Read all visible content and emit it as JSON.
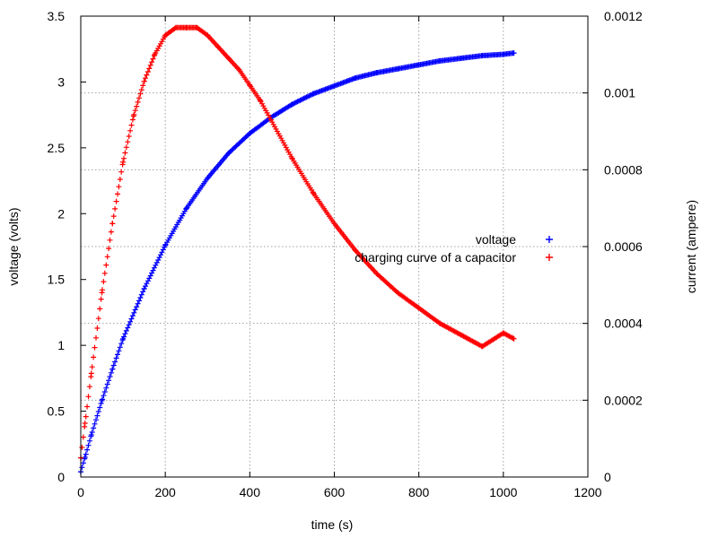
{
  "chart_data": {
    "type": "scatter",
    "title": "",
    "xlabel": "time (s)",
    "ylabel": "voltage (volts)",
    "y2label": "current (ampere)",
    "xlim": [
      0,
      1200
    ],
    "ylim": [
      0,
      3.5
    ],
    "y2lim": [
      0,
      0.0012
    ],
    "grid": true,
    "legend_position": "right-center",
    "x_ticks": [
      "0",
      "200",
      "400",
      "600",
      "800",
      "1000",
      "1200"
    ],
    "y_ticks": [
      "0",
      "0.5",
      "1",
      "1.5",
      "2",
      "2.5",
      "3",
      "3.5"
    ],
    "y2_ticks": [
      "0",
      "0.0002",
      "0.0004",
      "0.0006",
      "0.0008",
      "0.001",
      "0.0012"
    ],
    "series": [
      {
        "name": "voltage",
        "axis": "y",
        "color": "#0000ff",
        "marker": "+",
        "x": [
          0,
          10,
          25,
          50,
          75,
          100,
          150,
          200,
          250,
          300,
          350,
          400,
          450,
          500,
          550,
          600,
          650,
          700,
          750,
          800,
          850,
          900,
          950,
          1000,
          1025
        ],
        "y": [
          0.04,
          0.15,
          0.32,
          0.58,
          0.82,
          1.05,
          1.43,
          1.76,
          2.04,
          2.27,
          2.46,
          2.61,
          2.73,
          2.83,
          2.91,
          2.97,
          3.03,
          3.07,
          3.1,
          3.13,
          3.16,
          3.18,
          3.2,
          3.21,
          3.22
        ]
      },
      {
        "name": "charging curve of a capacitor",
        "axis": "y2",
        "color": "#ff0000",
        "marker": "+",
        "x": [
          0,
          10,
          25,
          50,
          75,
          100,
          125,
          150,
          175,
          200,
          225,
          250,
          275,
          300,
          325,
          350,
          375,
          400,
          425,
          450,
          500,
          550,
          600,
          650,
          700,
          750,
          800,
          850,
          900,
          950,
          1000,
          1025
        ],
        "y": [
          5e-05,
          0.00014,
          0.00027,
          0.00048,
          0.00066,
          0.00082,
          0.00094,
          0.00103,
          0.0011,
          0.00115,
          0.00117,
          0.00117,
          0.00117,
          0.00115,
          0.00112,
          0.00109,
          0.00106,
          0.00102,
          0.00098,
          0.00093,
          0.00083,
          0.00074,
          0.00066,
          0.00059,
          0.00053,
          0.00048,
          0.00044,
          0.0004,
          0.00037,
          0.00034,
          0.000375,
          0.00036
        ]
      }
    ]
  }
}
